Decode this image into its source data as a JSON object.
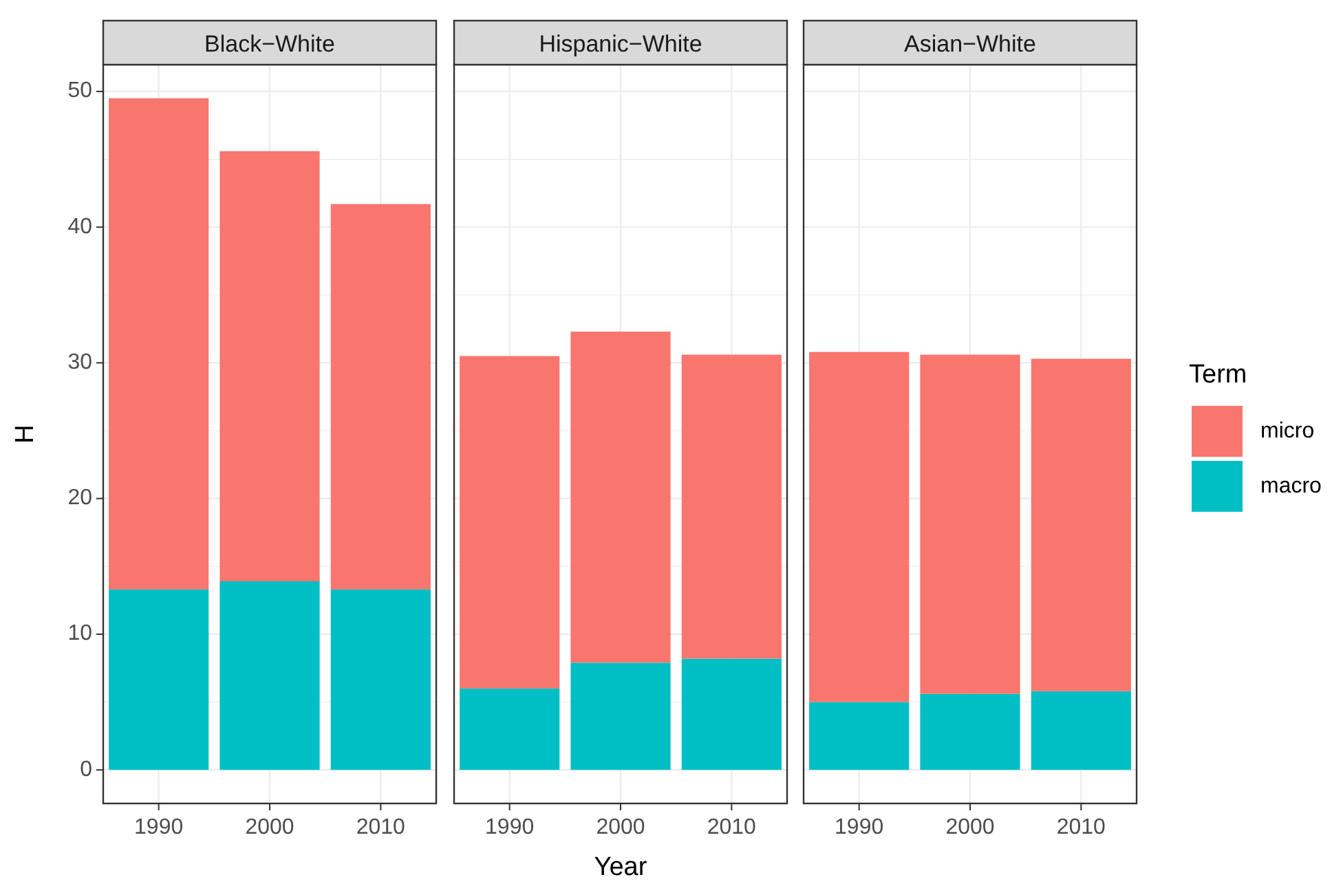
{
  "chart_data": [
    {
      "type": "bar",
      "title": "Black−White",
      "ylabel": "H",
      "categories": [
        "1990",
        "2000",
        "2010"
      ],
      "stacked": true,
      "ylim": [
        -2.475,
        51.975
      ],
      "yticks": [
        0,
        10,
        20,
        30,
        40,
        50
      ],
      "grid": true,
      "series": [
        {
          "color": "#00bfc4",
          "values": [
            13.3,
            13.9,
            13.3
          ]
        },
        {
          "color": "#f8766d",
          "values": [
            36.2,
            31.7,
            28.4
          ]
        }
      ]
    },
    {
      "type": "bar",
      "title": "Hispanic−White",
      "xlabel": "Year",
      "categories": [
        "1990",
        "2000",
        "2010"
      ],
      "stacked": true,
      "ylim": [
        -2.475,
        51.975
      ],
      "yticks": [
        0,
        10,
        20,
        30,
        40,
        50
      ],
      "grid": true,
      "tick_labels": "x",
      "series": [
        {
          "color": "#00bfc4",
          "values": [
            6.0,
            7.9,
            8.2
          ]
        },
        {
          "color": "#f8766d",
          "values": [
            24.5,
            24.4,
            22.4
          ]
        }
      ]
    },
    {
      "type": "bar",
      "title": "Asian−White",
      "categories": [
        "1990",
        "2000",
        "2010"
      ],
      "stacked": true,
      "ylim": [
        -2.475,
        51.975
      ],
      "yticks": [
        0,
        10,
        20,
        30,
        40,
        50
      ],
      "grid": true,
      "tick_labels": "x",
      "legend": "right",
      "legend_title": "Term",
      "series": [
        {
          "name": "macro",
          "color": "#00bfc4",
          "values": [
            5.0,
            5.6,
            5.8
          ]
        },
        {
          "name": "micro",
          "color": "#f8766d",
          "values": [
            25.8,
            25.0,
            24.5
          ]
        }
      ]
    }
  ]
}
